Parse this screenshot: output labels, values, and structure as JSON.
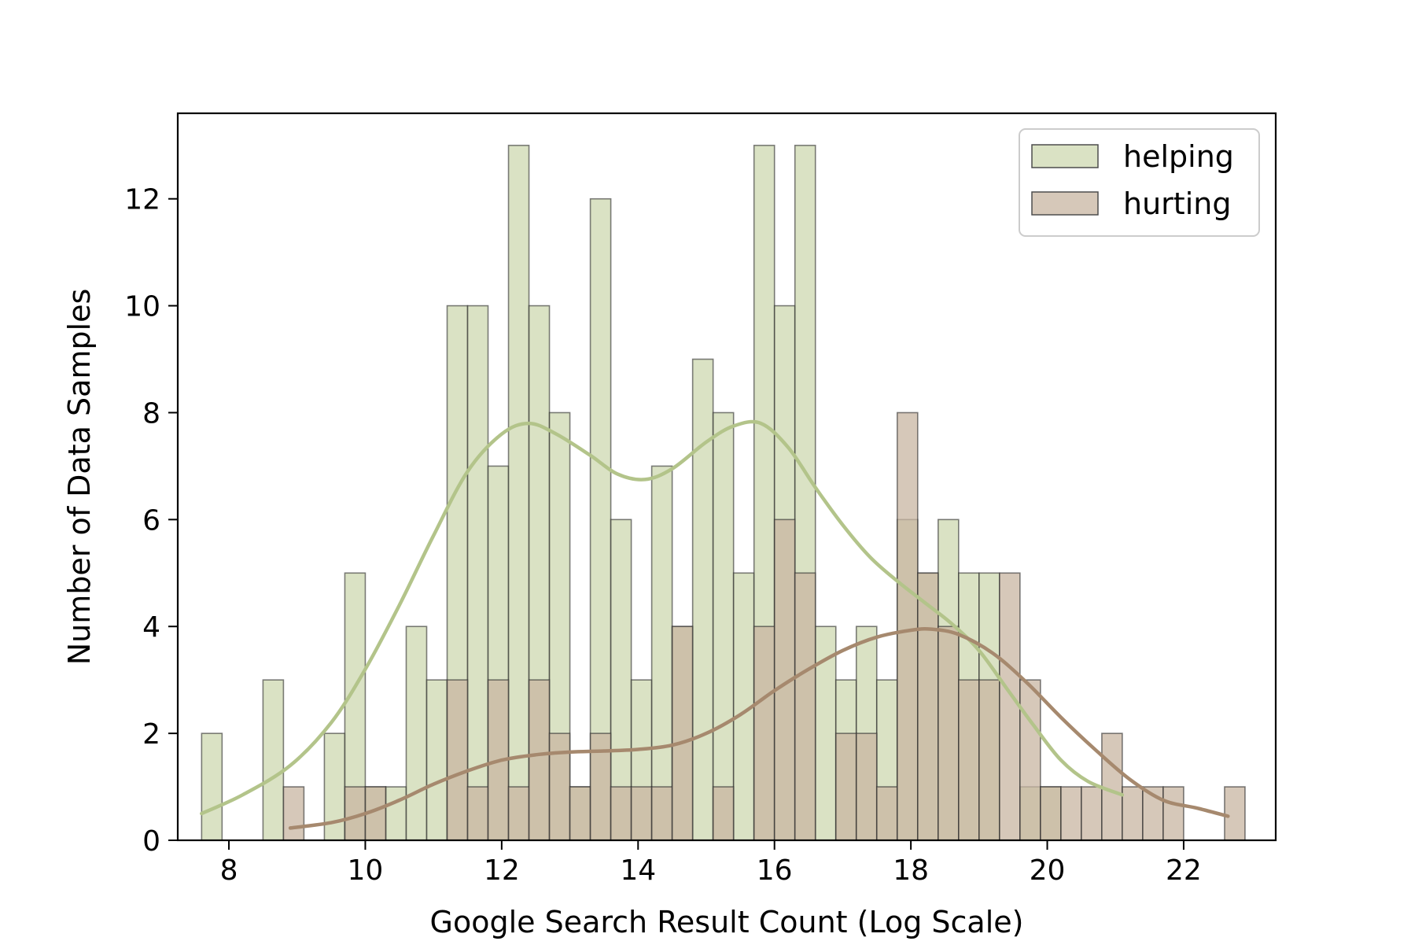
{
  "chart_data": {
    "type": "bar",
    "subtype": "overlaid histogram with KDE curves",
    "title": "",
    "xlabel": "Google Search Result Count (Log Scale)",
    "ylabel": "Number of Data Samples",
    "xlim": [
      7.25,
      23.35
    ],
    "ylim": [
      0,
      13.6
    ],
    "xticks": [
      8,
      10,
      12,
      14,
      16,
      18,
      20,
      22
    ],
    "yticks": [
      0,
      2,
      4,
      6,
      8,
      10,
      12
    ],
    "bin_start": 7.6,
    "bin_width": 0.3,
    "grid": false,
    "legend_position": "top-right",
    "series": [
      {
        "name": "helping",
        "color": "#cdd8b0",
        "kde_color": "#b3c48a",
        "values": [
          2,
          0,
          0,
          3,
          0,
          0,
          2,
          5,
          1,
          1,
          4,
          3,
          10,
          10,
          7,
          13,
          10,
          8,
          1,
          12,
          6,
          3,
          7,
          4,
          9,
          8,
          5,
          13,
          10,
          13,
          4,
          3,
          4,
          3,
          6,
          5,
          6,
          5,
          5,
          0,
          1,
          1,
          0,
          0,
          0,
          0,
          0,
          0,
          0,
          0,
          0
        ]
      },
      {
        "name": "hurting",
        "color": "#c8b5a2",
        "kde_color": "#a6896e",
        "values": [
          0,
          0,
          0,
          0,
          1,
          0,
          0,
          1,
          1,
          0,
          0,
          0,
          3,
          1,
          3,
          1,
          3,
          2,
          1,
          2,
          1,
          1,
          1,
          4,
          0,
          1,
          0,
          4,
          6,
          5,
          0,
          2,
          2,
          1,
          8,
          5,
          4,
          3,
          3,
          5,
          3,
          1,
          1,
          1,
          2,
          1,
          1,
          1,
          0,
          0,
          1
        ]
      }
    ],
    "kde": [
      {
        "name": "helping",
        "x": [
          7.6,
          8.2,
          8.9,
          9.5,
          10.0,
          10.5,
          11.0,
          11.5,
          12.0,
          12.4,
          12.8,
          13.3,
          13.7,
          14.1,
          14.5,
          15.0,
          15.4,
          15.8,
          16.2,
          16.6,
          17.0,
          17.4,
          17.8,
          18.2,
          18.6,
          19.0,
          19.4,
          19.8,
          20.2,
          20.6,
          21.1
        ],
        "y": [
          0.5,
          0.85,
          1.4,
          2.2,
          3.2,
          4.4,
          5.7,
          6.9,
          7.6,
          7.8,
          7.6,
          7.2,
          6.85,
          6.75,
          6.95,
          7.45,
          7.75,
          7.8,
          7.35,
          6.6,
          5.9,
          5.3,
          4.85,
          4.45,
          4.05,
          3.55,
          2.85,
          2.15,
          1.5,
          1.1,
          0.85
        ]
      },
      {
        "name": "hurting",
        "x": [
          8.9,
          9.5,
          10.0,
          10.5,
          11.0,
          11.5,
          12.0,
          12.5,
          13.0,
          13.5,
          14.0,
          14.5,
          15.0,
          15.5,
          16.0,
          16.5,
          17.0,
          17.5,
          18.0,
          18.3,
          18.7,
          19.2,
          19.7,
          20.2,
          20.7,
          21.2,
          21.7,
          22.2,
          22.65
        ],
        "y": [
          0.23,
          0.33,
          0.5,
          0.75,
          1.05,
          1.3,
          1.5,
          1.6,
          1.65,
          1.67,
          1.7,
          1.78,
          2.0,
          2.35,
          2.8,
          3.2,
          3.55,
          3.8,
          3.93,
          3.95,
          3.85,
          3.5,
          2.95,
          2.3,
          1.7,
          1.15,
          0.75,
          0.6,
          0.45
        ]
      }
    ]
  }
}
